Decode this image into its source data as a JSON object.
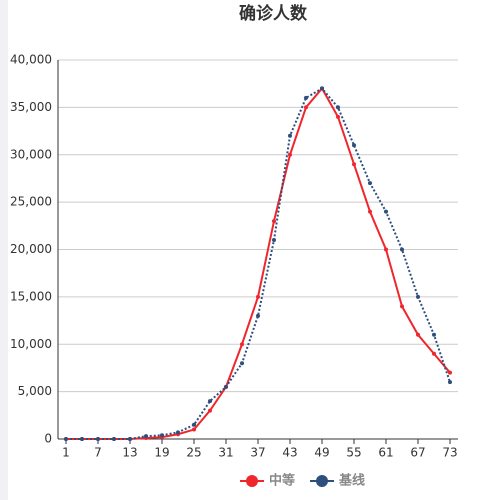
{
  "chart_data": {
    "type": "line",
    "title": "确诊人数",
    "x": [
      1,
      4,
      7,
      10,
      13,
      16,
      19,
      22,
      25,
      28,
      31,
      34,
      37,
      40,
      43,
      46,
      49,
      52,
      55,
      58,
      61,
      64,
      67,
      70,
      73
    ],
    "xlim": [
      -0.5,
      74.5
    ],
    "xticks": [
      1,
      7,
      13,
      19,
      25,
      31,
      37,
      43,
      49,
      55,
      61,
      67,
      73
    ],
    "ylim": [
      0,
      40000
    ],
    "yticks": [
      0,
      {
        "value": 5000,
        "label": "5,000"
      },
      {
        "value": 10000,
        "label": "10,000"
      },
      {
        "value": 15000,
        "label": "15,000"
      },
      {
        "value": 20000,
        "label": "20,000"
      },
      {
        "value": 25000,
        "label": "25,000"
      },
      {
        "value": 30000,
        "label": "30,000"
      },
      {
        "value": 35000,
        "label": "35,000"
      },
      {
        "value": 40000,
        "label": "40,000"
      }
    ],
    "grid": true,
    "legend": "bottom",
    "series": [
      {
        "name": "中等",
        "color": "#f0262d",
        "dash": false,
        "values": [
          0,
          0,
          0,
          0,
          0,
          100,
          200,
          500,
          1000,
          3000,
          5500,
          10000,
          15000,
          23000,
          30000,
          35000,
          37000,
          34000,
          29000,
          24000,
          20000,
          14000,
          11000,
          9000,
          7000
        ]
      },
      {
        "name": "基线",
        "color": "#2d4f7c",
        "dash": true,
        "values": [
          0,
          0,
          0,
          0,
          0,
          300,
          400,
          700,
          1500,
          4000,
          5500,
          8000,
          13000,
          21000,
          32000,
          36000,
          37000,
          35000,
          31000,
          27000,
          24000,
          20000,
          15000,
          11000,
          6000
        ]
      }
    ]
  }
}
